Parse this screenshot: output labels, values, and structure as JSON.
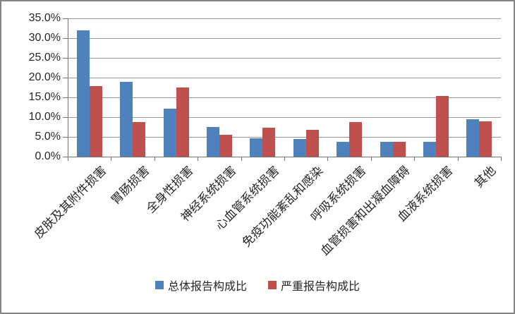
{
  "chart_data": {
    "type": "bar",
    "title": "",
    "xlabel": "",
    "ylabel": "",
    "categories": [
      "皮肤及其附件损害",
      "胃肠损害",
      "全身性损害",
      "神经系统损害",
      "心血管系统损害",
      "免疫功能紊乱和感染",
      "呼吸系统损害",
      "血管损害和出凝血障碍",
      "血液系统损害",
      "其他"
    ],
    "series": [
      {
        "name": "总体报告构成比",
        "color": "#4F81BD",
        "values": [
          31.9,
          19.0,
          12.2,
          7.5,
          4.7,
          4.4,
          3.8,
          3.7,
          3.7,
          9.4
        ]
      },
      {
        "name": "严重报告构成比",
        "color": "#C0504D",
        "values": [
          17.8,
          8.8,
          17.5,
          5.5,
          7.3,
          6.7,
          8.7,
          3.7,
          15.3,
          8.9
        ]
      }
    ],
    "ylim": [
      0,
      35
    ],
    "ytick_step": 5,
    "ytick_labels": [
      "0.0%",
      "5.0%",
      "10.0%",
      "15.0%",
      "20.0%",
      "25.0%",
      "30.0%",
      "35.0%"
    ],
    "grid": true,
    "legend_position": "bottom"
  },
  "colors": {
    "gridline": "#979797",
    "axis": "#767676",
    "frame_border": "#848484",
    "text": "#262626"
  }
}
